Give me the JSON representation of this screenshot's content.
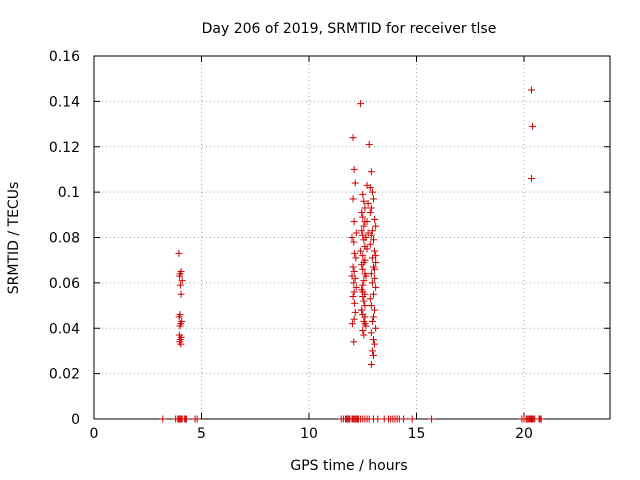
{
  "chart_data": {
    "type": "scatter",
    "title": "Day 206 of 2019, SRMTID for receiver tlse",
    "xlabel": "GPS time / hours",
    "ylabel": "SRMTID / TECUs",
    "xlim": [
      0,
      24
    ],
    "ylim": [
      0,
      0.16
    ],
    "x_ticks": [
      0,
      5,
      10,
      15,
      20
    ],
    "x_tick_labels": [
      "0",
      "5",
      "10",
      "15",
      "20"
    ],
    "y_ticks": [
      0,
      0.02,
      0.04,
      0.06,
      0.08,
      0.1,
      0.12,
      0.14,
      0.16
    ],
    "y_tick_labels": [
      "0",
      "0.02",
      "0.04",
      "0.06",
      "0.08",
      "0.1",
      "0.12",
      "0.14",
      "0.16"
    ],
    "grid": true,
    "legend": "none",
    "marker": "+",
    "color": "#cc0000",
    "series": [
      {
        "x": [
          3.95,
          4.05,
          4.0,
          4.1,
          3.98,
          4.02,
          4.05,
          4.0,
          3.96,
          4.08,
          4.03,
          4.0,
          3.97,
          4.06,
          4.01,
          3.99,
          4.04,
          12.05,
          12.1,
          12.15,
          12.05,
          12.1,
          12.2,
          12.0,
          12.08,
          12.12,
          12.18,
          12.05,
          12.1,
          12.0,
          12.15,
          12.08,
          12.2,
          12.1,
          12.05,
          12.12,
          12.15,
          12.1,
          12.02,
          12.08,
          12.4,
          12.5,
          12.55,
          12.6,
          12.45,
          12.5,
          12.6,
          12.55,
          12.45,
          12.5,
          12.65,
          12.55,
          12.6,
          12.4,
          12.5,
          12.6,
          12.55,
          12.45,
          12.5,
          12.6,
          12.65,
          12.55,
          12.5,
          12.45,
          12.6,
          12.5,
          12.55,
          12.6,
          12.45,
          12.5,
          12.6,
          12.55,
          12.65,
          12.5,
          12.55,
          12.6,
          12.45,
          12.5,
          12.8,
          12.9,
          12.85,
          12.95,
          13.0,
          12.9,
          12.85,
          13.05,
          13.1,
          12.95,
          12.9,
          13.0,
          12.85,
          13.05,
          12.95,
          13.1,
          13.0,
          12.9,
          13.05,
          12.95,
          13.1,
          13.0,
          12.85,
          12.9,
          13.05,
          13.0,
          12.95,
          13.1,
          12.9,
          13.0,
          13.05,
          12.95,
          13.0,
          12.9,
          13.05,
          13.1,
          12.7,
          12.75,
          12.7,
          12.75,
          12.7,
          20.35,
          20.4,
          20.35
        ],
        "y": [
          0.073,
          0.065,
          0.064,
          0.061,
          0.063,
          0.059,
          0.055,
          0.046,
          0.045,
          0.043,
          0.042,
          0.041,
          0.037,
          0.036,
          0.035,
          0.034,
          0.033,
          0.124,
          0.11,
          0.104,
          0.097,
          0.087,
          0.082,
          0.08,
          0.078,
          0.073,
          0.071,
          0.067,
          0.065,
          0.063,
          0.062,
          0.06,
          0.058,
          0.056,
          0.054,
          0.051,
          0.047,
          0.044,
          0.042,
          0.034,
          0.139,
          0.099,
          0.096,
          0.093,
          0.091,
          0.089,
          0.087,
          0.085,
          0.083,
          0.081,
          0.08,
          0.079,
          0.076,
          0.074,
          0.072,
          0.07,
          0.069,
          0.068,
          0.066,
          0.064,
          0.063,
          0.061,
          0.059,
          0.057,
          0.055,
          0.054,
          0.052,
          0.05,
          0.048,
          0.046,
          0.045,
          0.043,
          0.041,
          0.039,
          0.037,
          0.042,
          0.048,
          0.056,
          0.121,
          0.109,
          0.102,
          0.1,
          0.097,
          0.093,
          0.091,
          0.088,
          0.085,
          0.083,
          0.081,
          0.079,
          0.077,
          0.074,
          0.071,
          0.069,
          0.067,
          0.064,
          0.062,
          0.06,
          0.058,
          0.055,
          0.053,
          0.05,
          0.048,
          0.045,
          0.043,
          0.04,
          0.038,
          0.035,
          0.033,
          0.03,
          0.028,
          0.024,
          0.066,
          0.072,
          0.103,
          0.095,
          0.087,
          0.082,
          0.075,
          0.145,
          0.129,
          0.106
        ]
      },
      {
        "x": [
          3.2,
          3.8,
          3.9,
          3.95,
          4.0,
          4.05,
          4.1,
          4.2,
          4.25,
          4.3,
          4.7,
          4.8,
          11.5,
          11.6,
          11.7,
          11.75,
          11.8,
          11.85,
          11.9,
          12.0,
          12.05,
          12.1,
          12.15,
          12.2,
          12.25,
          12.3,
          12.4,
          12.5,
          12.6,
          12.7,
          12.8,
          13.0,
          13.2,
          13.5,
          13.7,
          13.8,
          13.9,
          14.0,
          14.1,
          14.2,
          14.4,
          14.8,
          15.7,
          19.9,
          20.0,
          20.1,
          20.15,
          20.2,
          20.25,
          20.3,
          20.35,
          20.4,
          20.45,
          20.5,
          20.7,
          20.75,
          20.8
        ],
        "y": [
          0,
          0,
          0,
          0,
          0,
          0,
          0,
          0,
          0,
          0,
          0,
          0,
          0,
          0,
          0,
          0,
          0,
          0,
          0,
          0,
          0,
          0,
          0,
          0,
          0,
          0,
          0,
          0,
          0,
          0,
          0,
          0,
          0,
          0,
          0,
          0,
          0,
          0,
          0,
          0,
          0,
          0,
          0,
          0,
          0,
          0,
          0,
          0,
          0,
          0,
          0,
          0,
          0,
          0,
          0,
          0,
          0
        ]
      }
    ]
  }
}
